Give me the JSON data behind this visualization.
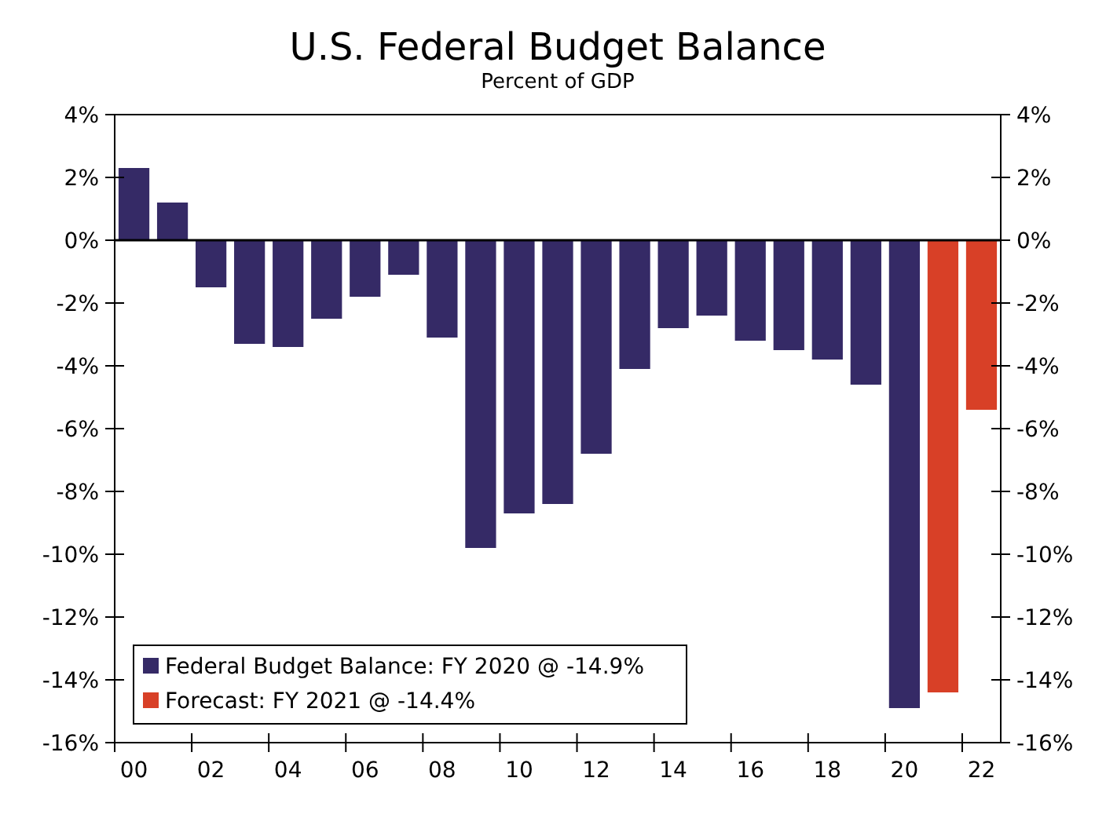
{
  "chart_data": {
    "type": "bar",
    "title": "U.S. Federal Budget Balance",
    "subtitle": "Percent of GDP",
    "categories": [
      "00",
      null,
      "02",
      null,
      "04",
      null,
      "06",
      null,
      "08",
      null,
      "10",
      null,
      "12",
      null,
      "14",
      null,
      "16",
      null,
      "18",
      null,
      "20",
      null,
      "22"
    ],
    "ylim": [
      -16,
      4
    ],
    "yticks": [
      {
        "value": 4,
        "label": "4%"
      },
      {
        "value": 2,
        "label": "2%"
      },
      {
        "value": 0,
        "label": "0%"
      },
      {
        "value": -2,
        "label": "-2%"
      },
      {
        "value": -4,
        "label": "-4%"
      },
      {
        "value": -6,
        "label": "-6%"
      },
      {
        "value": -8,
        "label": "-8%"
      },
      {
        "value": -10,
        "label": "-10%"
      },
      {
        "value": -12,
        "label": "-12%"
      },
      {
        "value": -14,
        "label": "-14%"
      },
      {
        "value": -16,
        "label": "-16%"
      }
    ],
    "y2lim": [
      -16,
      4
    ],
    "y2ticks": [
      {
        "value": 4,
        "label": "4%"
      },
      {
        "value": 2,
        "label": "2%"
      },
      {
        "value": 0,
        "label": "0%"
      },
      {
        "value": -2,
        "label": "-2%"
      },
      {
        "value": -4,
        "label": "-4%"
      },
      {
        "value": -6,
        "label": "-6%"
      },
      {
        "value": -8,
        "label": "-8%"
      },
      {
        "value": -10,
        "label": "-10%"
      },
      {
        "value": -12,
        "label": "-12%"
      },
      {
        "value": -14,
        "label": "-14%"
      },
      {
        "value": -16,
        "label": "-16%"
      }
    ],
    "series": [
      {
        "name": "Federal Budget Balance: FY 2020 @ -14.9%",
        "color": "#352a66",
        "values": [
          2.3,
          1.2,
          -1.5,
          -3.3,
          -3.4,
          -2.5,
          -1.8,
          -1.1,
          -3.1,
          -9.8,
          -8.7,
          -8.4,
          -6.8,
          -4.1,
          -2.8,
          -2.4,
          -3.2,
          -3.5,
          -3.8,
          -4.6,
          -14.9,
          null,
          null
        ]
      },
      {
        "name": "Forecast: FY 2021 @ -14.4%",
        "color": "#d84027",
        "values": [
          null,
          null,
          null,
          null,
          null,
          null,
          null,
          null,
          null,
          null,
          null,
          null,
          null,
          null,
          null,
          null,
          null,
          null,
          null,
          null,
          null,
          -14.4,
          -5.4
        ]
      }
    ],
    "legend": "bottom left"
  }
}
